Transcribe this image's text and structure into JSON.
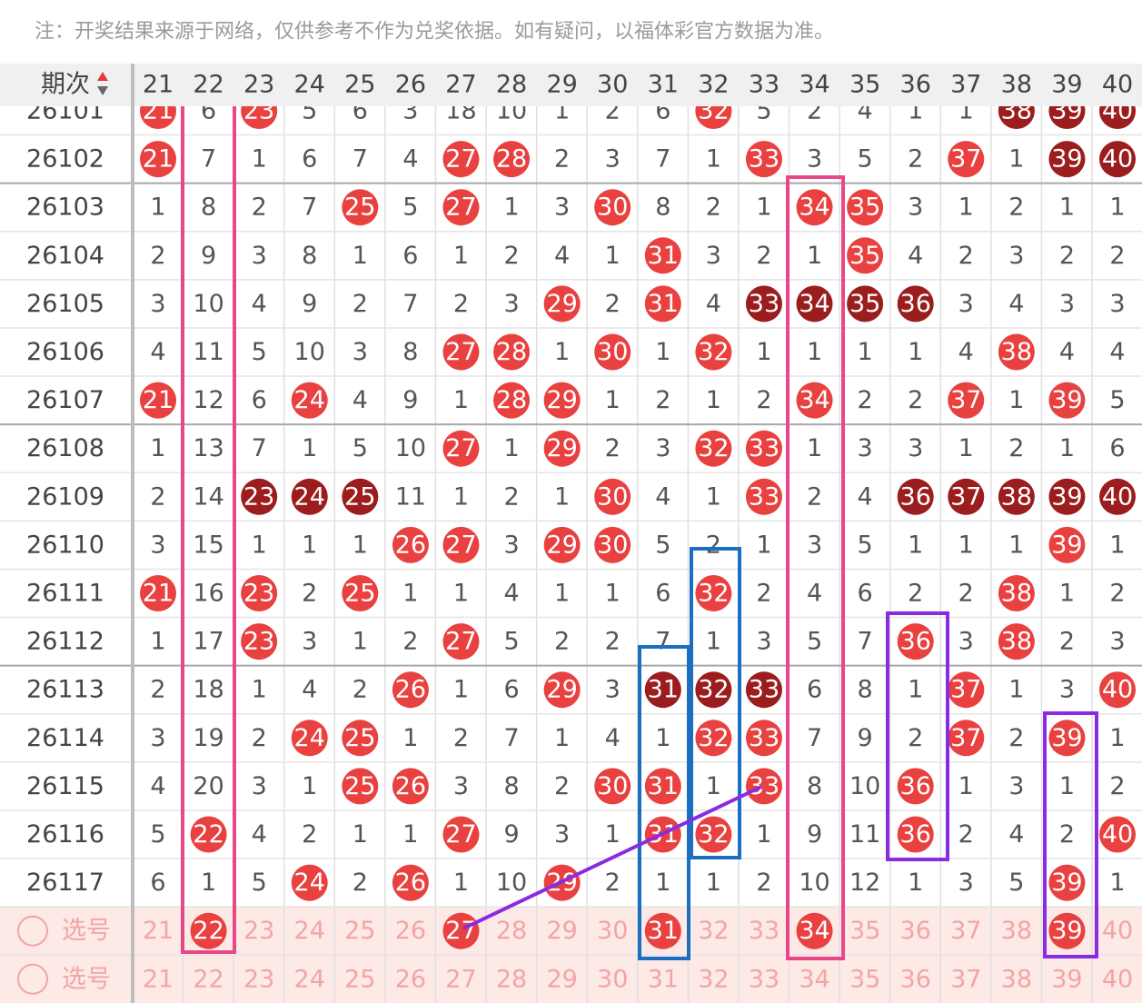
{
  "note": "注：开奖结果来源于网络，仅供参考不作为兑奖依据。如有疑问，以福体彩官方数据为准。",
  "header": {
    "label": "期次",
    "columns": [
      21,
      22,
      23,
      24,
      25,
      26,
      27,
      28,
      29,
      30,
      31,
      32,
      33,
      34,
      35,
      36,
      37,
      38,
      39,
      40
    ]
  },
  "rows": [
    {
      "period": 26101,
      "cells": [
        {
          "text": 21,
          "ball": "red"
        },
        6,
        {
          "text": 23,
          "ball": "red"
        },
        5,
        6,
        3,
        18,
        10,
        1,
        2,
        6,
        {
          "text": 32,
          "ball": "red"
        },
        5,
        2,
        4,
        1,
        1,
        {
          "text": 38,
          "ball": "dark"
        },
        {
          "text": 39,
          "ball": "dark"
        },
        {
          "text": 40,
          "ball": "dark"
        }
      ]
    },
    {
      "period": 26102,
      "cells": [
        {
          "text": 21,
          "ball": "red"
        },
        7,
        1,
        6,
        7,
        4,
        {
          "text": 27,
          "ball": "red"
        },
        {
          "text": 28,
          "ball": "red"
        },
        2,
        3,
        7,
        1,
        {
          "text": 33,
          "ball": "red"
        },
        3,
        5,
        2,
        {
          "text": 37,
          "ball": "red"
        },
        1,
        {
          "text": 39,
          "ball": "dark"
        },
        {
          "text": 40,
          "ball": "dark"
        }
      ]
    },
    {
      "period": 26103,
      "cells": [
        1,
        8,
        2,
        7,
        {
          "text": 25,
          "ball": "red"
        },
        5,
        {
          "text": 27,
          "ball": "red"
        },
        1,
        3,
        {
          "text": 30,
          "ball": "red"
        },
        8,
        2,
        1,
        {
          "text": 34,
          "ball": "red"
        },
        {
          "text": 35,
          "ball": "red"
        },
        3,
        1,
        2,
        1,
        1
      ]
    },
    {
      "period": 26104,
      "cells": [
        2,
        9,
        3,
        8,
        1,
        6,
        1,
        2,
        4,
        1,
        {
          "text": 31,
          "ball": "red"
        },
        3,
        2,
        1,
        {
          "text": 35,
          "ball": "red"
        },
        4,
        2,
        3,
        2,
        2
      ]
    },
    {
      "period": 26105,
      "cells": [
        3,
        10,
        4,
        9,
        2,
        7,
        2,
        3,
        {
          "text": 29,
          "ball": "red"
        },
        2,
        {
          "text": 31,
          "ball": "red"
        },
        4,
        {
          "text": 33,
          "ball": "dark"
        },
        {
          "text": 34,
          "ball": "dark"
        },
        {
          "text": 35,
          "ball": "dark"
        },
        {
          "text": 36,
          "ball": "dark"
        },
        3,
        4,
        3,
        3
      ]
    },
    {
      "period": 26106,
      "cells": [
        4,
        11,
        5,
        10,
        3,
        8,
        {
          "text": 27,
          "ball": "red"
        },
        {
          "text": 28,
          "ball": "red"
        },
        1,
        {
          "text": 30,
          "ball": "red"
        },
        1,
        {
          "text": 32,
          "ball": "red"
        },
        1,
        1,
        1,
        1,
        4,
        {
          "text": 38,
          "ball": "red"
        },
        4,
        4
      ]
    },
    {
      "period": 26107,
      "cells": [
        {
          "text": 21,
          "ball": "red"
        },
        12,
        6,
        {
          "text": 24,
          "ball": "red"
        },
        4,
        9,
        1,
        {
          "text": 28,
          "ball": "red"
        },
        {
          "text": 29,
          "ball": "red"
        },
        1,
        2,
        1,
        2,
        {
          "text": 34,
          "ball": "red"
        },
        2,
        2,
        {
          "text": 37,
          "ball": "red"
        },
        1,
        {
          "text": 39,
          "ball": "red"
        },
        5
      ]
    },
    {
      "period": 26108,
      "cells": [
        1,
        13,
        7,
        1,
        5,
        10,
        {
          "text": 27,
          "ball": "red"
        },
        1,
        {
          "text": 29,
          "ball": "red"
        },
        2,
        3,
        {
          "text": 32,
          "ball": "red"
        },
        {
          "text": 33,
          "ball": "red"
        },
        1,
        3,
        3,
        1,
        2,
        1,
        6
      ]
    },
    {
      "period": 26109,
      "cells": [
        2,
        14,
        {
          "text": 23,
          "ball": "dark"
        },
        {
          "text": 24,
          "ball": "dark"
        },
        {
          "text": 25,
          "ball": "dark"
        },
        11,
        1,
        2,
        1,
        {
          "text": 30,
          "ball": "red"
        },
        4,
        1,
        {
          "text": 33,
          "ball": "red"
        },
        2,
        4,
        {
          "text": 36,
          "ball": "dark"
        },
        {
          "text": 37,
          "ball": "dark"
        },
        {
          "text": 38,
          "ball": "dark"
        },
        {
          "text": 39,
          "ball": "dark"
        },
        {
          "text": 40,
          "ball": "dark"
        }
      ]
    },
    {
      "period": 26110,
      "cells": [
        3,
        15,
        1,
        1,
        1,
        {
          "text": 26,
          "ball": "red"
        },
        {
          "text": 27,
          "ball": "red"
        },
        3,
        {
          "text": 29,
          "ball": "red"
        },
        {
          "text": 30,
          "ball": "red"
        },
        5,
        2,
        1,
        3,
        5,
        1,
        1,
        1,
        {
          "text": 39,
          "ball": "red"
        },
        1
      ]
    },
    {
      "period": 26111,
      "cells": [
        {
          "text": 21,
          "ball": "red"
        },
        16,
        {
          "text": 23,
          "ball": "red"
        },
        2,
        {
          "text": 25,
          "ball": "red"
        },
        1,
        1,
        4,
        1,
        1,
        6,
        {
          "text": 32,
          "ball": "red"
        },
        2,
        4,
        6,
        2,
        2,
        {
          "text": 38,
          "ball": "red"
        },
        1,
        2
      ]
    },
    {
      "period": 26112,
      "cells": [
        1,
        17,
        {
          "text": 23,
          "ball": "red"
        },
        3,
        1,
        2,
        {
          "text": 27,
          "ball": "red"
        },
        5,
        2,
        2,
        7,
        1,
        3,
        5,
        7,
        {
          "text": 36,
          "ball": "red"
        },
        3,
        {
          "text": 38,
          "ball": "red"
        },
        2,
        3
      ]
    },
    {
      "period": 26113,
      "cells": [
        2,
        18,
        1,
        4,
        2,
        {
          "text": 26,
          "ball": "red"
        },
        1,
        6,
        {
          "text": 29,
          "ball": "red"
        },
        3,
        {
          "text": 31,
          "ball": "dark"
        },
        {
          "text": 32,
          "ball": "dark"
        },
        {
          "text": 33,
          "ball": "dark"
        },
        6,
        8,
        1,
        {
          "text": 37,
          "ball": "red"
        },
        1,
        3,
        {
          "text": 40,
          "ball": "red"
        }
      ]
    },
    {
      "period": 26114,
      "cells": [
        3,
        19,
        2,
        {
          "text": 24,
          "ball": "red"
        },
        {
          "text": 25,
          "ball": "red"
        },
        1,
        2,
        7,
        1,
        4,
        1,
        {
          "text": 32,
          "ball": "red"
        },
        {
          "text": 33,
          "ball": "red"
        },
        7,
        9,
        2,
        {
          "text": 37,
          "ball": "red"
        },
        2,
        {
          "text": 39,
          "ball": "red"
        },
        1
      ]
    },
    {
      "period": 26115,
      "cells": [
        4,
        20,
        3,
        1,
        {
          "text": 25,
          "ball": "red"
        },
        {
          "text": 26,
          "ball": "red"
        },
        3,
        8,
        2,
        {
          "text": 30,
          "ball": "red"
        },
        {
          "text": 31,
          "ball": "red"
        },
        1,
        {
          "text": 33,
          "ball": "red"
        },
        8,
        10,
        {
          "text": 36,
          "ball": "red"
        },
        1,
        3,
        1,
        2
      ]
    },
    {
      "period": 26116,
      "cells": [
        5,
        {
          "text": 22,
          "ball": "red"
        },
        4,
        2,
        1,
        1,
        {
          "text": 27,
          "ball": "red"
        },
        9,
        3,
        1,
        {
          "text": 31,
          "ball": "red"
        },
        {
          "text": 32,
          "ball": "red"
        },
        1,
        9,
        11,
        {
          "text": 36,
          "ball": "red"
        },
        2,
        4,
        2,
        {
          "text": 40,
          "ball": "red"
        }
      ]
    },
    {
      "period": 26117,
      "cells": [
        6,
        1,
        5,
        {
          "text": 24,
          "ball": "red"
        },
        2,
        {
          "text": 26,
          "ball": "red"
        },
        1,
        10,
        {
          "text": 29,
          "ball": "red"
        },
        2,
        1,
        1,
        2,
        10,
        12,
        1,
        3,
        5,
        {
          "text": 39,
          "ball": "red"
        },
        1
      ]
    }
  ],
  "pick_rows": [
    {
      "label": "选号",
      "cells": [
        21,
        {
          "text": 22,
          "ball": "red"
        },
        23,
        24,
        25,
        26,
        {
          "text": 27,
          "ball": "red"
        },
        28,
        29,
        30,
        {
          "text": 31,
          "ball": "red"
        },
        32,
        33,
        {
          "text": 34,
          "ball": "red"
        },
        35,
        36,
        37,
        38,
        {
          "text": 39,
          "ball": "red"
        },
        40
      ]
    },
    {
      "label": "选号",
      "cells": [
        21,
        22,
        23,
        24,
        25,
        26,
        27,
        28,
        29,
        30,
        31,
        32,
        33,
        34,
        35,
        36,
        37,
        38,
        39,
        40
      ]
    }
  ]
}
